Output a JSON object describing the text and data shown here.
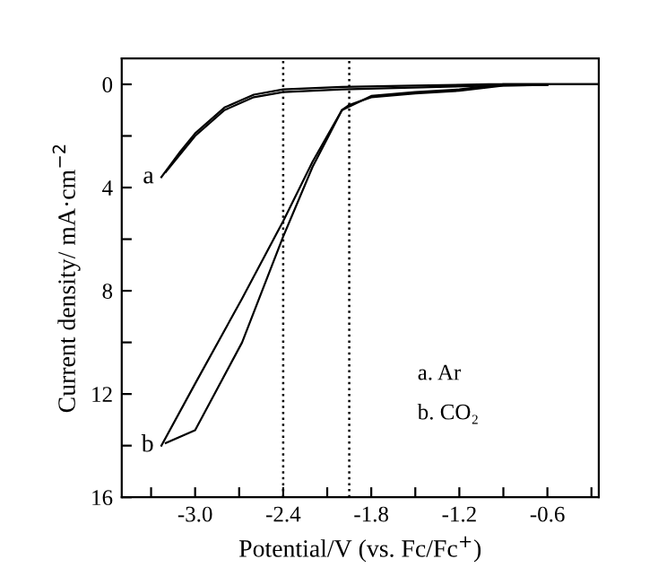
{
  "chart_data": {
    "type": "line",
    "xlabel": "Potential/V (vs. Fc/Fc$^{+}$)",
    "ylabel": "Current density/ mA·cm$^{−2}$",
    "xlim": [
      -3.5,
      -0.25
    ],
    "ylim": [
      16,
      -1
    ],
    "xticks": [
      {
        "value": -3.3,
        "label": null
      },
      {
        "value": -3.0,
        "label": "-3.0"
      },
      {
        "value": -2.7,
        "label": null
      },
      -2.4,
      {
        "value": -2.1,
        "label": null
      },
      -1.8,
      {
        "value": -1.5,
        "label": null
      },
      -1.2,
      {
        "value": -0.9,
        "label": null
      },
      -0.6,
      {
        "value": -0.3,
        "label": null
      }
    ],
    "yticks": [
      0,
      {
        "value": 2,
        "label": null
      },
      4,
      {
        "value": 6,
        "label": null
      },
      8,
      {
        "value": 10,
        "label": null
      },
      12,
      {
        "value": 14,
        "label": null
      },
      16
    ],
    "series": [
      {
        "color": "#000000",
        "x": [
          -3.23,
          -3.1,
          -3.0,
          -2.8,
          -2.6,
          -2.4,
          -2.0,
          -1.5,
          -1.0,
          -0.25
        ],
        "values": [
          3.6,
          2.6,
          1.9,
          0.9,
          0.4,
          0.2,
          0.1,
          0.05,
          0,
          0
        ]
      },
      {
        "color": "#000000",
        "x": [
          -3.2,
          -3.0,
          -2.8,
          -2.6,
          -2.4,
          -2.0,
          -1.0,
          -0.6
        ],
        "values": [
          3.4,
          2.0,
          1.0,
          0.5,
          0.3,
          0.2,
          0.05,
          0.02
        ]
      },
      {
        "color": "#000000",
        "x": [
          -3.23,
          -3.0,
          -2.68,
          -2.4,
          -2.2,
          -2.1,
          -2.0,
          -1.8,
          -1.5,
          -1.2,
          -0.9,
          -0.25
        ],
        "values": [
          14.0,
          11.6,
          8.3,
          5.3,
          3.0,
          2.0,
          1.0,
          0.45,
          0.3,
          0.2,
          0,
          0
        ]
      },
      {
        "color": "#000000",
        "x": [
          -3.2,
          -3.0,
          -2.68,
          -2.4,
          -2.2,
          -2.1,
          -2.0,
          -1.95,
          -1.8,
          -1.5,
          -1.2,
          -0.9,
          -0.6
        ],
        "values": [
          13.9,
          13.4,
          10.0,
          5.9,
          3.2,
          2.1,
          1.0,
          0.8,
          0.5,
          0.35,
          0.25,
          0.05,
          0.02
        ]
      }
    ],
    "ref_lines": [
      {
        "axis": "x",
        "value": -2.4,
        "color": "#000000",
        "line_style": "dotted"
      },
      {
        "axis": "x",
        "value": -1.95,
        "color": "#000000",
        "line_style": "dotted"
      }
    ],
    "annotations": [
      {
        "text": "a",
        "x": -3.23,
        "y": 3.6
      },
      {
        "text": "b",
        "x": -3.23,
        "y": 14.0
      },
      "a. Ar",
      "b. CO₂"
    ],
    "grid": false,
    "legend": false,
    "marker": "none",
    "line_style": "solid"
  }
}
